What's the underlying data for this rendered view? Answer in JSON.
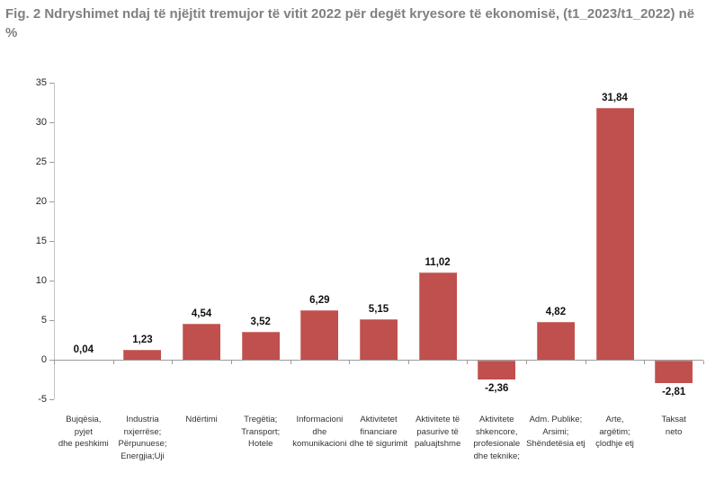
{
  "header": {
    "line1": "Fig. 2 Ndryshimet ndaj të njëjtit tremujor të vitit 2022 për degët kryesore të ekonomisë, (t1_2023/t1_2022) në",
    "line2": "%"
  },
  "colors": {
    "bar": "#C0504D",
    "bar_edge": "#cf7b78",
    "title_text": "#808080",
    "axis_line": "#c3c3c3",
    "zero_line": "#9b9b9b",
    "tick_label": "#262626",
    "value_label": "#111111",
    "category_label": "#333333",
    "background": "#ffffff"
  },
  "chart_data": {
    "type": "bar",
    "title": "Fig. 2 Ndryshimet ndaj të njëjtit tremujor të vitit 2022 për degët kryesore të ekonomisë, (t1_2023/t1_2022) në %",
    "xlabel": "",
    "ylabel": "",
    "ylim": [
      -5,
      35
    ],
    "yticks": [
      35,
      30,
      25,
      20,
      15,
      10,
      5,
      0,
      -5
    ],
    "grid": false,
    "legend": null,
    "bar_color": "#C0504D",
    "categories": [
      [
        "Bujqësia,",
        "pyjet",
        "dhe peshkimi"
      ],
      [
        "Industria",
        "nxjerrëse;",
        "Përpunuese;",
        "Energjia;Uji"
      ],
      [
        "Ndërtimi"
      ],
      [
        "Tregëtia;",
        "Transport;",
        "Hotele"
      ],
      [
        "Informacioni",
        "dhe",
        "komunikacioni"
      ],
      [
        "Aktivitetet",
        "financiare",
        "dhe të sigurimit"
      ],
      [
        "Aktivitete të",
        "pasurive të",
        "paluajtshme"
      ],
      [
        "Aktivitete",
        "shkencore,",
        "profesionale",
        "dhe teknike;"
      ],
      [
        "Adm. Publike;",
        "Arsimi;",
        "Shëndetësia etj"
      ],
      [
        "Arte,",
        "argëtim;",
        "çlodhje etj"
      ],
      [
        "Taksat",
        "neto"
      ]
    ],
    "values": [
      0.04,
      1.23,
      4.54,
      3.52,
      6.29,
      5.15,
      11.02,
      -2.36,
      4.82,
      31.84,
      -2.81
    ],
    "value_labels": [
      "0,04",
      "1,23",
      "4,54",
      "3,52",
      "6,29",
      "5,15",
      "11,02",
      "-2,36",
      "4,82",
      "31,84",
      "-2,81"
    ]
  }
}
